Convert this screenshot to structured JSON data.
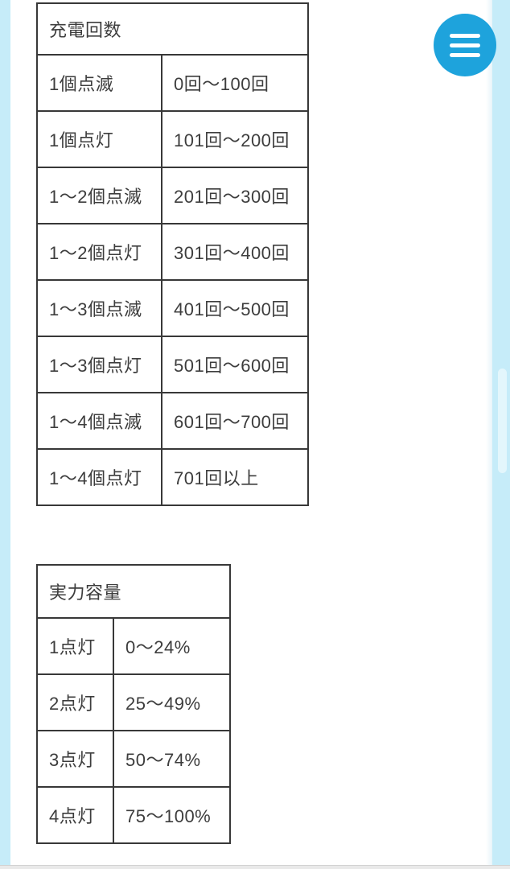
{
  "page": {
    "edge_background_color": "#c6ecf9",
    "content_background_color": "#ffffff",
    "table_border_color": "#383838",
    "text_color": "#3d3d3d",
    "bottom_edge_color": "#e9e9e9"
  },
  "menu_button": {
    "icon": "hamburger-menu-icon",
    "color": "#1ea3dc",
    "bar_color": "#ffffff"
  },
  "tables": [
    {
      "header": "充電回数",
      "rows": [
        {
          "label": "1個点滅",
          "value": "0回〜100回"
        },
        {
          "label": "1個点灯",
          "value": "101回〜200回"
        },
        {
          "label": "1〜2個点滅",
          "value": "201回〜300回"
        },
        {
          "label": "1〜2個点灯",
          "value": "301回〜400回"
        },
        {
          "label": "1〜3個点滅",
          "value": "401回〜500回"
        },
        {
          "label": "1〜3個点灯",
          "value": "501回〜600回"
        },
        {
          "label": "1〜4個点滅",
          "value": "601回〜700回"
        },
        {
          "label": "1〜4個点灯",
          "value": "701回以上"
        }
      ]
    },
    {
      "header": "実力容量",
      "rows": [
        {
          "label": "1点灯",
          "value": "0〜24%"
        },
        {
          "label": "2点灯",
          "value": "25〜49%"
        },
        {
          "label": "3点灯",
          "value": "50〜74%"
        },
        {
          "label": "4点灯",
          "value": "75〜100%"
        }
      ]
    }
  ]
}
